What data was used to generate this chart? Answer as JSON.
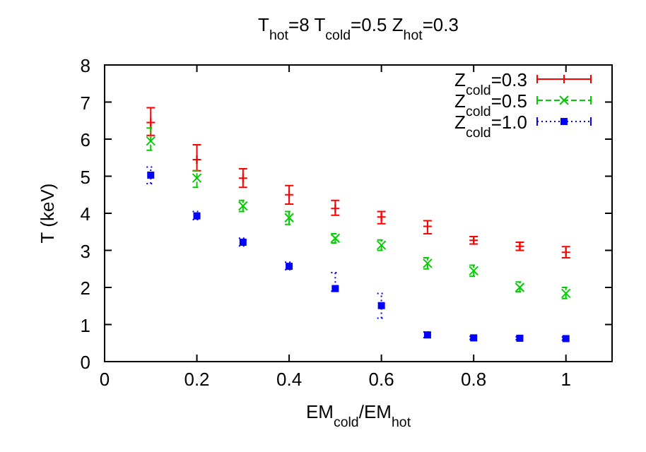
{
  "chart_data": {
    "type": "scatter",
    "title": "T$_{hot}$=8 T$_{cold}$=0.5 Z$_{hot}$=0.3",
    "xlabel": "EM$_{cold}$/EM$_{hot}$",
    "ylabel": "T (keV)",
    "x": [
      0.1,
      0.2,
      0.3,
      0.4,
      0.5,
      0.6,
      0.7,
      0.8,
      0.9,
      1.0
    ],
    "xlim": [
      0,
      1.1
    ],
    "xticks": [
      0,
      0.2,
      0.4,
      0.6,
      0.8,
      1
    ],
    "ylim": [
      0,
      8
    ],
    "yticks": [
      0,
      1,
      2,
      3,
      4,
      5,
      6,
      7,
      8
    ],
    "grid": false,
    "legend": "top right",
    "series": [
      {
        "name": "Z$_{cold}$=0.3",
        "color": "#ff0000",
        "marker": "cross",
        "line_style": "solid",
        "values": [
          6.45,
          5.45,
          4.95,
          4.5,
          4.13,
          3.9,
          3.65,
          3.27,
          3.11,
          2.95
        ],
        "errors": [
          [
            6.1,
            6.85
          ],
          [
            5.15,
            5.85
          ],
          [
            4.7,
            5.2
          ],
          [
            4.25,
            4.75
          ],
          [
            3.95,
            4.35
          ],
          [
            3.72,
            4.05
          ],
          [
            3.45,
            3.8
          ],
          [
            3.17,
            3.37
          ],
          [
            3.0,
            3.22
          ],
          [
            2.8,
            3.1
          ]
        ]
      },
      {
        "name": "Z$_{cold}$=0.5",
        "color": "#00cc00",
        "marker": "x",
        "line_style": "dashed",
        "values": [
          5.95,
          4.95,
          4.2,
          3.88,
          3.33,
          3.14,
          2.65,
          2.45,
          2.0,
          1.84
        ],
        "errors": [
          [
            5.7,
            6.3
          ],
          [
            4.7,
            5.15
          ],
          [
            4.05,
            4.35
          ],
          [
            3.7,
            4.05
          ],
          [
            3.2,
            3.45
          ],
          [
            3.0,
            3.28
          ],
          [
            2.5,
            2.8
          ],
          [
            2.3,
            2.6
          ],
          [
            1.88,
            2.15
          ],
          [
            1.7,
            2.0
          ]
        ]
      },
      {
        "name": "Z$_{cold}$=1.0",
        "color": "#0000ff",
        "marker": "square",
        "line_style": "dotted",
        "values": [
          5.03,
          3.93,
          3.22,
          2.57,
          1.97,
          1.51,
          0.72,
          0.64,
          0.63,
          0.62
        ],
        "errors": [
          [
            4.8,
            5.25
          ],
          [
            3.83,
            4.05
          ],
          [
            3.12,
            3.33
          ],
          [
            2.48,
            2.68
          ],
          [
            1.9,
            2.4
          ],
          [
            1.17,
            1.84
          ],
          [
            0.65,
            0.8
          ],
          [
            0.6,
            0.68
          ],
          [
            0.59,
            0.67
          ],
          [
            0.58,
            0.66
          ]
        ]
      }
    ]
  }
}
